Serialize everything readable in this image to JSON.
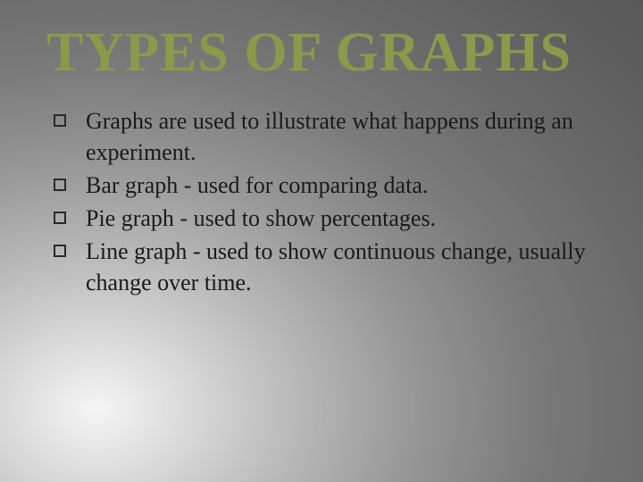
{
  "slide": {
    "title": "TYPES OF GRAPHS",
    "title_color": "#8a9a4a",
    "title_fontsize": 62,
    "title_fontfamily": "Comic Sans MS",
    "body_color": "#1a1a1a",
    "body_fontsize": 26,
    "body_fontfamily": "Comic Sans MS",
    "background_gradient": {
      "type": "radial",
      "center": "15% 85%",
      "stops": [
        "#f5f5f5",
        "#d8d8d8",
        "#b8b8b8",
        "#969696",
        "#7a7a7a",
        "#6a6a6a",
        "#5e5e5e",
        "#555555"
      ]
    },
    "bullet_marker": {
      "shape": "hollow-square",
      "border_color": "#2a2a2a",
      "size": 14
    },
    "bullets": [
      "Graphs are used to illustrate what happens during an experiment.",
      "Bar graph - used for comparing data.",
      "Pie graph - used to show percentages.",
      "Line graph - used to show continuous change, usually change over time."
    ]
  }
}
